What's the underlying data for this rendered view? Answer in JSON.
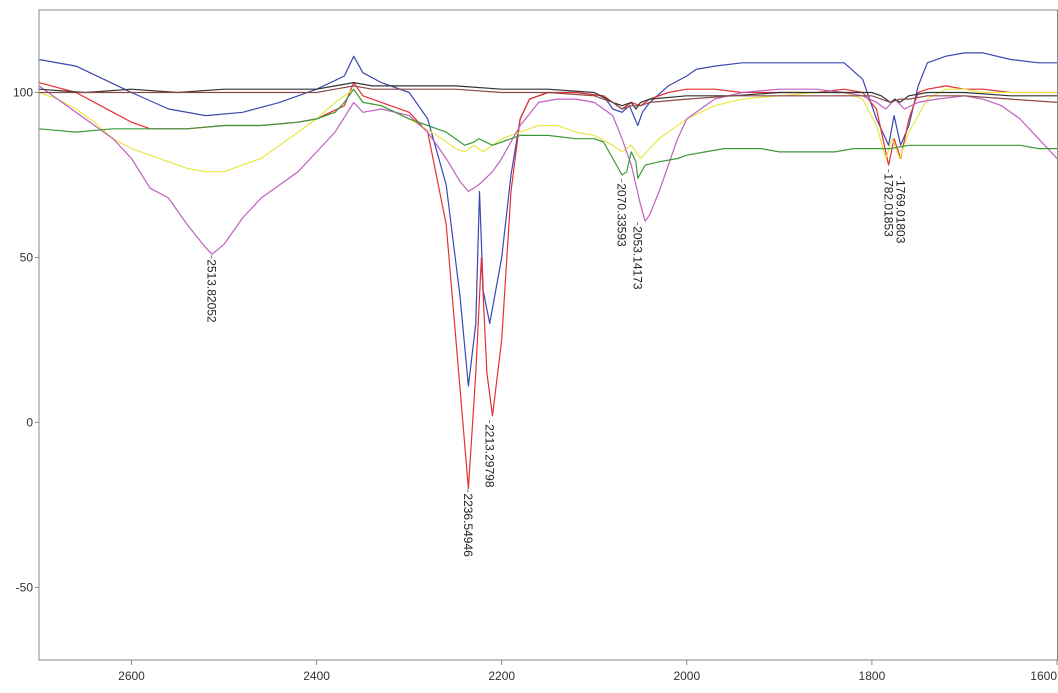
{
  "chart_data": {
    "type": "line",
    "title": "",
    "xlabel": "",
    "ylabel": "",
    "xlim": [
      2700,
      1600
    ],
    "ylim": [
      -72,
      125
    ],
    "x_reversed": true,
    "grid": false,
    "x_ticks": [
      {
        "value": 2600,
        "label": "2600"
      },
      {
        "value": 2400,
        "label": "2400"
      },
      {
        "value": 2200,
        "label": "2200"
      },
      {
        "value": 2000,
        "label": "2000"
      },
      {
        "value": 1800,
        "label": "1800"
      },
      {
        "value": 1600,
        "label": "1600"
      }
    ],
    "y_ticks": [
      {
        "value": 100,
        "label": "100"
      },
      {
        "value": 50,
        "label": "50"
      },
      {
        "value": 0,
        "label": "0"
      },
      {
        "value": -50,
        "label": "-50"
      }
    ],
    "peak_labels": [
      {
        "x": 2513.82052,
        "y": 51,
        "label": "2513.82052"
      },
      {
        "x": 2236.54946,
        "y": -20,
        "label": "2236.54946"
      },
      {
        "x": 2213.29798,
        "y": 1,
        "label": "2213.29798"
      },
      {
        "x": 2070.33593,
        "y": 74,
        "label": "2070.33593"
      },
      {
        "x": 2053.14173,
        "y": 61,
        "label": "2053.14173"
      },
      {
        "x": 1782.01853,
        "y": 77,
        "label": "1782.01853"
      },
      {
        "x": 1769.01803,
        "y": 75,
        "label": "1769.01803"
      }
    ],
    "series": [
      {
        "color": "#3a48b0",
        "x": [
          2700,
          2660,
          2600,
          2560,
          2520,
          2480,
          2440,
          2400,
          2370,
          2360,
          2350,
          2330,
          2300,
          2280,
          2260,
          2245,
          2236,
          2228,
          2224,
          2220,
          2213,
          2200,
          2190,
          2180,
          2170,
          2150,
          2120,
          2090,
          2080,
          2070,
          2062,
          2056,
          2053,
          2048,
          2040,
          2020,
          2000,
          1990,
          1970,
          1940,
          1900,
          1860,
          1830,
          1810,
          1795,
          1782,
          1776,
          1769,
          1760,
          1750,
          1740,
          1720,
          1700,
          1680,
          1650,
          1620,
          1600
        ],
        "y": [
          110,
          108,
          100,
          95,
          93,
          94,
          97,
          101,
          105,
          111,
          106,
          103,
          100,
          92,
          72,
          38,
          11,
          30,
          70,
          40,
          30,
          50,
          75,
          92,
          98,
          100,
          100,
          99,
          95,
          94,
          96,
          92,
          90,
          94,
          97,
          102,
          105,
          107,
          108,
          109,
          109,
          109,
          109,
          104,
          92,
          84,
          93,
          84,
          90,
          102,
          109,
          111,
          112,
          112,
          110,
          109,
          109
        ]
      },
      {
        "color": "#e53030",
        "x": [
          2700,
          2660,
          2620,
          2600,
          2580,
          2540,
          2500,
          2460,
          2420,
          2400,
          2370,
          2360,
          2350,
          2330,
          2300,
          2280,
          2260,
          2245,
          2236,
          2228,
          2222,
          2216,
          2210,
          2200,
          2190,
          2180,
          2170,
          2150,
          2120,
          2090,
          2080,
          2070,
          2060,
          2050,
          2040,
          2020,
          2000,
          1970,
          1940,
          1900,
          1860,
          1830,
          1810,
          1795,
          1782,
          1776,
          1769,
          1760,
          1750,
          1740,
          1720,
          1700,
          1680,
          1650,
          1620,
          1600
        ],
        "y": [
          103,
          100,
          94,
          91,
          89,
          89,
          90,
          90,
          91,
          92,
          96,
          103,
          99,
          97,
          94,
          88,
          60,
          10,
          -20,
          15,
          50,
          15,
          2,
          25,
          70,
          92,
          98,
          100,
          100,
          99,
          97,
          95,
          97,
          96,
          98,
          100,
          101,
          101,
          100,
          100,
          100,
          101,
          100,
          95,
          78,
          86,
          80,
          92,
          100,
          101,
          102,
          101,
          101,
          100,
          100,
          100
        ]
      },
      {
        "color": "#e8e84a",
        "x": [
          2700,
          2680,
          2660,
          2640,
          2620,
          2600,
          2580,
          2560,
          2540,
          2520,
          2500,
          2480,
          2460,
          2440,
          2420,
          2400,
          2380,
          2360,
          2350,
          2330,
          2300,
          2270,
          2250,
          2240,
          2230,
          2220,
          2210,
          2200,
          2180,
          2160,
          2140,
          2120,
          2100,
          2080,
          2070,
          2060,
          2050,
          2040,
          2030,
          2000,
          1970,
          1940,
          1900,
          1860,
          1830,
          1810,
          1795,
          1785,
          1778,
          1770,
          1760,
          1740,
          1720,
          1700,
          1680,
          1650,
          1620,
          1600
        ],
        "y": [
          100,
          98,
          95,
          91,
          86,
          83,
          81,
          79,
          77,
          76,
          76,
          78,
          80,
          84,
          88,
          92,
          97,
          101,
          97,
          96,
          92,
          87,
          83,
          82,
          84,
          82,
          84,
          86,
          88,
          90,
          90,
          88,
          87,
          84,
          82,
          84,
          80,
          83,
          86,
          92,
          96,
          98,
          99,
          100,
          100,
          98,
          90,
          80,
          86,
          80,
          88,
          98,
          101,
          101,
          100,
          100,
          100,
          100
        ]
      },
      {
        "color": "#c060c0",
        "x": [
          2700,
          2680,
          2660,
          2640,
          2620,
          2600,
          2580,
          2560,
          2540,
          2520,
          2513,
          2500,
          2480,
          2460,
          2440,
          2420,
          2400,
          2380,
          2360,
          2350,
          2330,
          2300,
          2280,
          2260,
          2245,
          2236,
          2225,
          2210,
          2200,
          2180,
          2160,
          2140,
          2120,
          2100,
          2080,
          2070,
          2060,
          2050,
          2045,
          2040,
          2030,
          2010,
          2000,
          1970,
          1940,
          1900,
          1860,
          1830,
          1810,
          1795,
          1785,
          1775,
          1765,
          1750,
          1730,
          1700,
          1680,
          1660,
          1640,
          1620,
          1600
        ],
        "y": [
          102,
          98,
          94,
          90,
          86,
          80,
          71,
          68,
          60,
          53,
          51,
          54,
          62,
          68,
          72,
          76,
          82,
          88,
          97,
          94,
          95,
          93,
          88,
          80,
          73,
          70,
          72,
          76,
          80,
          90,
          97,
          98,
          98,
          97,
          93,
          86,
          78,
          66,
          61,
          63,
          70,
          86,
          92,
          98,
          100,
          101,
          101,
          100,
          99,
          97,
          95,
          98,
          95,
          97,
          98,
          99,
          98,
          96,
          92,
          86,
          80
        ]
      },
      {
        "color": "#3a9a3a",
        "x": [
          2700,
          2660,
          2620,
          2580,
          2540,
          2500,
          2460,
          2420,
          2400,
          2380,
          2370,
          2360,
          2350,
          2330,
          2300,
          2280,
          2260,
          2250,
          2240,
          2230,
          2225,
          2210,
          2200,
          2180,
          2150,
          2120,
          2100,
          2090,
          2080,
          2070,
          2065,
          2060,
          2055,
          2053,
          2045,
          2030,
          2010,
          2000,
          1980,
          1960,
          1940,
          1920,
          1900,
          1880,
          1860,
          1840,
          1820,
          1800,
          1780,
          1760,
          1740,
          1720,
          1700,
          1680,
          1660,
          1640,
          1620,
          1600
        ],
        "y": [
          89,
          88,
          89,
          89,
          89,
          90,
          90,
          91,
          92,
          94,
          97,
          101,
          97,
          96,
          92,
          90,
          88,
          86,
          84,
          85,
          86,
          84,
          85,
          87,
          87,
          86,
          86,
          85,
          80,
          75,
          76,
          82,
          79,
          74,
          78,
          79,
          80,
          81,
          82,
          83,
          83,
          83,
          82,
          82,
          82,
          82,
          83,
          83,
          83,
          84,
          84,
          84,
          84,
          84,
          84,
          84,
          83,
          83
        ]
      },
      {
        "color": "#333333",
        "x": [
          2700,
          2650,
          2600,
          2550,
          2500,
          2450,
          2400,
          2380,
          2360,
          2340,
          2300,
          2250,
          2200,
          2150,
          2100,
          2080,
          2070,
          2060,
          2055,
          2050,
          2040,
          2000,
          1950,
          1900,
          1850,
          1800,
          1790,
          1780,
          1775,
          1770,
          1760,
          1740,
          1700,
          1650,
          1600
        ],
        "y": [
          101,
          100,
          101,
          100,
          101,
          101,
          101,
          102,
          103,
          102,
          102,
          102,
          101,
          101,
          100,
          97,
          96,
          97,
          95,
          97,
          98,
          99,
          99,
          100,
          100,
          100,
          99,
          97,
          98,
          97,
          99,
          100,
          100,
          99,
          99
        ]
      },
      {
        "color": "#8a4a4a",
        "x": [
          2700,
          2650,
          2600,
          2550,
          2500,
          2450,
          2400,
          2380,
          2360,
          2340,
          2300,
          2250,
          2200,
          2150,
          2100,
          2080,
          2070,
          2060,
          2050,
          2040,
          2000,
          1950,
          1900,
          1850,
          1800,
          1790,
          1780,
          1770,
          1760,
          1740,
          1700,
          1650,
          1600
        ],
        "y": [
          100,
          100,
          100,
          100,
          100,
          100,
          100,
          101,
          102,
          101,
          101,
          101,
          100,
          100,
          99,
          97,
          95,
          96,
          96,
          97,
          98,
          99,
          99,
          99,
          99,
          98,
          97,
          98,
          98,
          99,
          99,
          98,
          97
        ]
      }
    ]
  }
}
